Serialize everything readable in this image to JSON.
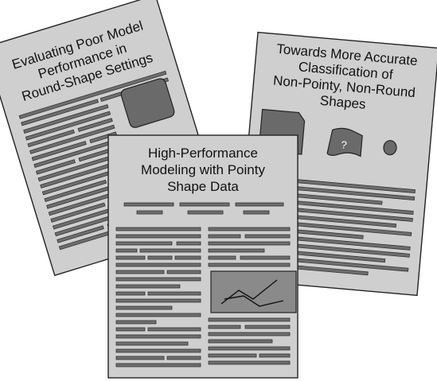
{
  "papers": {
    "left": {
      "title_lines": [
        "Evaluating Poor Model",
        "Performance in",
        "Round-Shape Settings"
      ]
    },
    "right": {
      "title_lines": [
        "Towards More Accurate",
        "Classification of",
        "Non-Pointy, Non-Round",
        "Shapes"
      ],
      "figure_label": "?"
    },
    "center": {
      "title_lines": [
        "High-Performance",
        "Modeling with Pointy",
        "Shape Data"
      ]
    }
  }
}
